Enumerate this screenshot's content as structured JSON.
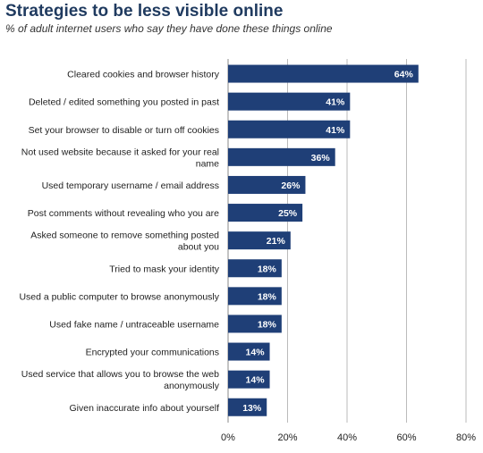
{
  "header": {
    "title": "Strategies to be less visible online",
    "subtitle": "% of adult internet users who say they have done these things online"
  },
  "colors": {
    "bar": "#1f3f77",
    "grid": "#bbbbbb",
    "axis": "#888888"
  },
  "chart_data": {
    "type": "bar",
    "orientation": "horizontal",
    "title": "Strategies to be less visible online",
    "subtitle": "% of adult internet users who say they have done these things online",
    "categories": [
      [
        "Cleared cookies and browser history"
      ],
      [
        "Deleted / edited something you posted in past"
      ],
      [
        "Set your browser to disable or turn off cookies"
      ],
      [
        "Not used website because it asked for your real",
        "name"
      ],
      [
        "Used temporary username / email address"
      ],
      [
        "Post comments without revealing who you are"
      ],
      [
        "Asked someone to remove something posted",
        "about you"
      ],
      [
        "Tried to mask your identity"
      ],
      [
        "Used a public computer to browse anonymously"
      ],
      [
        "Used fake name / untraceable username"
      ],
      [
        "Encrypted your communications"
      ],
      [
        "Used service that allows you to browse the web",
        "anonymously"
      ],
      [
        "Given inaccurate info about yourself"
      ]
    ],
    "values": [
      64,
      41,
      41,
      36,
      26,
      25,
      21,
      18,
      18,
      18,
      14,
      14,
      13
    ],
    "value_labels": [
      "64%",
      "41%",
      "41%",
      "36%",
      "26%",
      "25%",
      "21%",
      "18%",
      "18%",
      "18%",
      "14%",
      "14%",
      "13%"
    ],
    "xlim": [
      0,
      80
    ],
    "xticks": [
      0,
      20,
      40,
      60,
      80
    ],
    "xtick_labels": [
      "0%",
      "20%",
      "40%",
      "60%",
      "80%"
    ],
    "grid": true,
    "legend": "none"
  }
}
